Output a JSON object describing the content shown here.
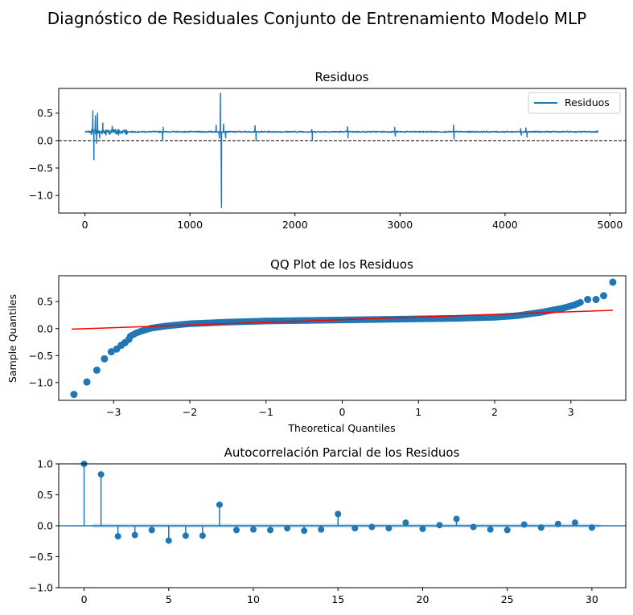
{
  "suptitle": "Diagnóstico de Residuales Conjunto de Entrenamiento Modelo MLP",
  "chart_data": [
    {
      "type": "line",
      "title": "Residuos",
      "xlabel": "",
      "ylabel": "",
      "xlim": [
        -250,
        5150
      ],
      "ylim": [
        -1.32,
        0.95
      ],
      "xticks": [
        0,
        1000,
        2000,
        3000,
        4000,
        5000
      ],
      "xtick_labels": [
        "0",
        "1000",
        "2000",
        "3000",
        "4000",
        "5000"
      ],
      "yticks": [
        -1.0,
        -0.5,
        0.0,
        0.5
      ],
      "ytick_labels": [
        "−1.0",
        "−0.5",
        "0.0",
        "0.5"
      ],
      "legend": {
        "placement": "top-right",
        "entries": [
          "Residuos"
        ]
      },
      "reference_line": {
        "y": 0.0,
        "style": "dashed",
        "color": "#000000"
      },
      "series": [
        {
          "name": "Residuos",
          "color": "#1f77b4",
          "x_range": [
            0,
            4890
          ],
          "baseline": 0.16,
          "spikes": [
            {
              "x": 75,
              "y": 0.54
            },
            {
              "x": 85,
              "y": -0.35
            },
            {
              "x": 100,
              "y": 0.45
            },
            {
              "x": 110,
              "y": -0.05
            },
            {
              "x": 120,
              "y": 0.5
            },
            {
              "x": 140,
              "y": 0.05
            },
            {
              "x": 170,
              "y": 0.32
            },
            {
              "x": 200,
              "y": 0.1
            },
            {
              "x": 260,
              "y": 0.26
            },
            {
              "x": 320,
              "y": 0.1
            },
            {
              "x": 740,
              "y": 0.0
            },
            {
              "x": 745,
              "y": 0.24
            },
            {
              "x": 1250,
              "y": 0.28
            },
            {
              "x": 1280,
              "y": 0.05
            },
            {
              "x": 1290,
              "y": 0.86
            },
            {
              "x": 1300,
              "y": -1.22
            },
            {
              "x": 1320,
              "y": 0.3
            },
            {
              "x": 1340,
              "y": 0.05
            },
            {
              "x": 1620,
              "y": 0.27
            },
            {
              "x": 1630,
              "y": 0.0
            },
            {
              "x": 2160,
              "y": 0.2
            },
            {
              "x": 2165,
              "y": 0.0
            },
            {
              "x": 2500,
              "y": 0.25
            },
            {
              "x": 2505,
              "y": 0.05
            },
            {
              "x": 2950,
              "y": 0.24
            },
            {
              "x": 2955,
              "y": 0.08
            },
            {
              "x": 3510,
              "y": 0.28
            },
            {
              "x": 3515,
              "y": 0.03
            },
            {
              "x": 4150,
              "y": 0.22
            },
            {
              "x": 4155,
              "y": 0.1
            },
            {
              "x": 4200,
              "y": 0.23
            },
            {
              "x": 4210,
              "y": 0.06
            },
            {
              "x": 4880,
              "y": 0.18
            }
          ]
        }
      ]
    },
    {
      "type": "scatter",
      "title": "QQ Plot de los Residuos",
      "xlabel": "Theoretical Quantiles",
      "ylabel": "Sample Quantiles",
      "xlim": [
        -3.72,
        3.72
      ],
      "ylim": [
        -1.33,
        0.98
      ],
      "xticks": [
        -3,
        -2,
        -1,
        0,
        1,
        2,
        3
      ],
      "xtick_labels": [
        "−3",
        "−2",
        "−1",
        "0",
        "1",
        "2",
        "3"
      ],
      "yticks": [
        -1.0,
        -0.5,
        0.0,
        0.5
      ],
      "ytick_labels": [
        "−1.0",
        "−0.5",
        "0.0",
        "0.5"
      ],
      "reference_line": {
        "x": [
          -3.55,
          3.55
        ],
        "y": [
          -0.01,
          0.34
        ],
        "color": "#ff0000"
      },
      "series": [
        {
          "name": "",
          "color": "#1f77b4",
          "outliers": [
            {
              "x": -3.52,
              "y": -1.22
            },
            {
              "x": -3.35,
              "y": -0.99
            },
            {
              "x": -3.22,
              "y": -0.77
            },
            {
              "x": -3.12,
              "y": -0.56
            },
            {
              "x": -3.03,
              "y": -0.43
            },
            {
              "x": -2.96,
              "y": -0.38
            },
            {
              "x": -2.9,
              "y": -0.31
            },
            {
              "x": -2.85,
              "y": -0.26
            },
            {
              "x": -2.8,
              "y": -0.2
            },
            {
              "x": 3.22,
              "y": 0.54
            },
            {
              "x": 3.33,
              "y": 0.54
            },
            {
              "x": 3.43,
              "y": 0.61
            },
            {
              "x": 3.55,
              "y": 0.86
            }
          ],
          "curve": [
            [
              -2.78,
              -0.14
            ],
            [
              -2.7,
              -0.08
            ],
            [
              -2.6,
              -0.03
            ],
            [
              -2.5,
              0.01
            ],
            [
              -2.3,
              0.05
            ],
            [
              -2.0,
              0.09
            ],
            [
              -1.5,
              0.12
            ],
            [
              -1.0,
              0.14
            ],
            [
              0.0,
              0.16
            ],
            [
              1.0,
              0.18
            ],
            [
              1.5,
              0.19
            ],
            [
              2.0,
              0.21
            ],
            [
              2.3,
              0.24
            ],
            [
              2.6,
              0.3
            ],
            [
              2.9,
              0.38
            ],
            [
              3.05,
              0.44
            ],
            [
              3.15,
              0.5
            ]
          ]
        }
      ]
    },
    {
      "type": "stem",
      "title": "Autocorrelación Parcial de los Residuos",
      "xlabel": "",
      "ylabel": "",
      "xlim": [
        -1.5,
        32
      ],
      "ylim": [
        -1.0,
        1.0
      ],
      "xticks": [
        0,
        5,
        10,
        15,
        20,
        25,
        30
      ],
      "xtick_labels": [
        "0",
        "5",
        "10",
        "15",
        "20",
        "25",
        "30"
      ],
      "yticks": [
        -1.0,
        -0.5,
        0.0,
        0.5,
        1.0
      ],
      "ytick_labels": [
        "−1.0",
        "−0.5",
        "0.0",
        "0.5",
        "1.0"
      ],
      "confidence_band": {
        "x": [
          0.5,
          30.5
        ],
        "y": [
          -0.03,
          0.03
        ]
      },
      "color": "#1f77b4",
      "lags": [
        0,
        1,
        2,
        3,
        4,
        5,
        6,
        7,
        8,
        9,
        10,
        11,
        12,
        13,
        14,
        15,
        16,
        17,
        18,
        19,
        20,
        21,
        22,
        23,
        24,
        25,
        26,
        27,
        28,
        29,
        30
      ],
      "values": [
        1.0,
        0.83,
        -0.17,
        -0.15,
        -0.07,
        -0.24,
        -0.16,
        -0.16,
        0.34,
        -0.07,
        -0.06,
        -0.07,
        -0.04,
        -0.08,
        -0.06,
        0.19,
        -0.04,
        -0.02,
        -0.04,
        0.05,
        -0.05,
        0.01,
        0.11,
        -0.02,
        -0.06,
        -0.07,
        0.02,
        -0.03,
        0.03,
        0.05,
        -0.03
      ]
    }
  ]
}
